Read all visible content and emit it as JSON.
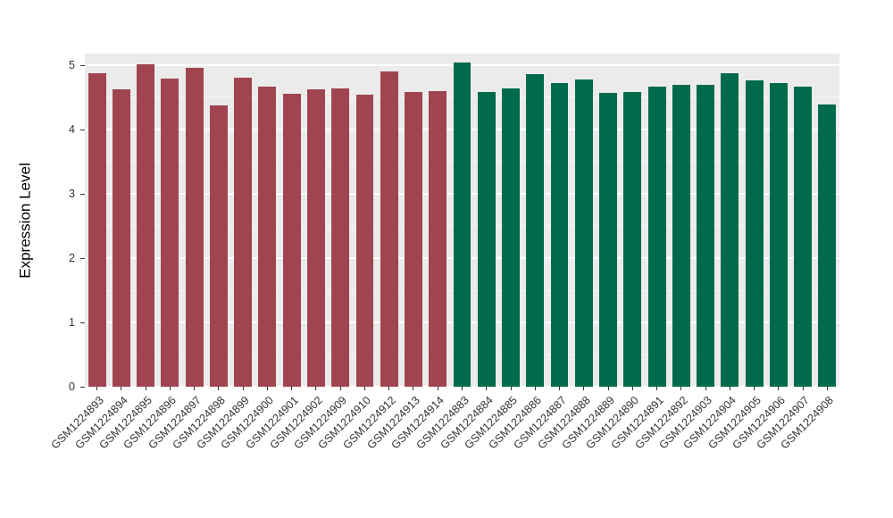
{
  "figure": {
    "background": "#FFFFFF",
    "panel_background": "#EBEBEB",
    "gridline_color": "#FFFFFF"
  },
  "chart_data": {
    "type": "bar",
    "title": "",
    "xlabel": "",
    "ylabel": "Expression Level",
    "ylim": [
      0,
      5.18
    ],
    "yticks": [
      0,
      1,
      2,
      3,
      4,
      5
    ],
    "grid": "white major gridlines at integers, faint minor gridlines at halves, on gray panel",
    "legend": "none",
    "bar_axis_text_angle": 45,
    "group_colors": {
      "maroon": "#A04550",
      "green": "#006B4C"
    },
    "bars": [
      {
        "label": "GSM1224893",
        "value": 4.88,
        "group": "maroon"
      },
      {
        "label": "GSM1224894",
        "value": 4.62,
        "group": "maroon"
      },
      {
        "label": "GSM1224895",
        "value": 5.02,
        "group": "maroon"
      },
      {
        "label": "GSM1224896",
        "value": 4.79,
        "group": "maroon"
      },
      {
        "label": "GSM1224897",
        "value": 4.96,
        "group": "maroon"
      },
      {
        "label": "GSM1224898",
        "value": 4.38,
        "group": "maroon"
      },
      {
        "label": "GSM1224899",
        "value": 4.81,
        "group": "maroon"
      },
      {
        "label": "GSM1224900",
        "value": 4.66,
        "group": "maroon"
      },
      {
        "label": "GSM1224901",
        "value": 4.55,
        "group": "maroon"
      },
      {
        "label": "GSM1224902",
        "value": 4.63,
        "group": "maroon"
      },
      {
        "label": "GSM1224909",
        "value": 4.64,
        "group": "maroon"
      },
      {
        "label": "GSM1224910",
        "value": 4.54,
        "group": "maroon"
      },
      {
        "label": "GSM1224912",
        "value": 4.9,
        "group": "maroon"
      },
      {
        "label": "GSM1224913",
        "value": 4.59,
        "group": "maroon"
      },
      {
        "label": "GSM1224914",
        "value": 4.6,
        "group": "maroon"
      },
      {
        "label": "GSM1224883",
        "value": 5.04,
        "group": "green"
      },
      {
        "label": "GSM1224884",
        "value": 4.58,
        "group": "green"
      },
      {
        "label": "GSM1224885",
        "value": 4.64,
        "group": "green"
      },
      {
        "label": "GSM1224886",
        "value": 4.86,
        "group": "green"
      },
      {
        "label": "GSM1224887",
        "value": 4.72,
        "group": "green"
      },
      {
        "label": "GSM1224888",
        "value": 4.78,
        "group": "green"
      },
      {
        "label": "GSM1224889",
        "value": 4.57,
        "group": "green"
      },
      {
        "label": "GSM1224890",
        "value": 4.59,
        "group": "green"
      },
      {
        "label": "GSM1224891",
        "value": 4.66,
        "group": "green"
      },
      {
        "label": "GSM1224892",
        "value": 4.69,
        "group": "green"
      },
      {
        "label": "GSM1224903",
        "value": 4.7,
        "group": "green"
      },
      {
        "label": "GSM1224904",
        "value": 4.87,
        "group": "green"
      },
      {
        "label": "GSM1224905",
        "value": 4.77,
        "group": "green"
      },
      {
        "label": "GSM1224906",
        "value": 4.72,
        "group": "green"
      },
      {
        "label": "GSM1224907",
        "value": 4.66,
        "group": "green"
      },
      {
        "label": "GSM1224908",
        "value": 4.39,
        "group": "green"
      }
    ]
  }
}
